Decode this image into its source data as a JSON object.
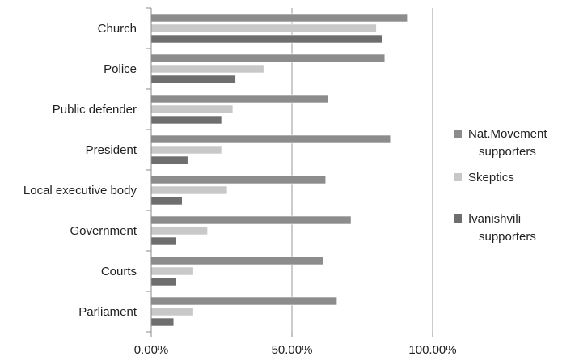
{
  "chart_data": {
    "type": "bar",
    "orientation": "horizontal",
    "categories": [
      "Church",
      "Police",
      "Public defender",
      "President",
      "Local executive body",
      "Government",
      "Courts",
      "Parliament"
    ],
    "series": [
      {
        "name": "Nat.Movement supporters",
        "color": "#8c8c8c",
        "values": [
          91,
          83,
          63,
          85,
          62,
          71,
          61,
          66
        ]
      },
      {
        "name": "Skeptics",
        "color": "#c8c8c8",
        "values": [
          80,
          40,
          29,
          25,
          27,
          20,
          15,
          15
        ]
      },
      {
        "name": "Ivanishvili supporters",
        "color": "#6e6e6e",
        "values": [
          82,
          30,
          25,
          13,
          11,
          9,
          9,
          8
        ]
      }
    ],
    "legend_labels": [
      [
        "Nat.Movement",
        "supporters"
      ],
      [
        "Skeptics"
      ],
      [
        "Ivanishvili",
        "supporters"
      ]
    ],
    "x_ticks": [
      "0.00%",
      "50.00%",
      "100.00%"
    ],
    "xlim": [
      0,
      100
    ],
    "grid": "vertical",
    "legend": "right"
  }
}
